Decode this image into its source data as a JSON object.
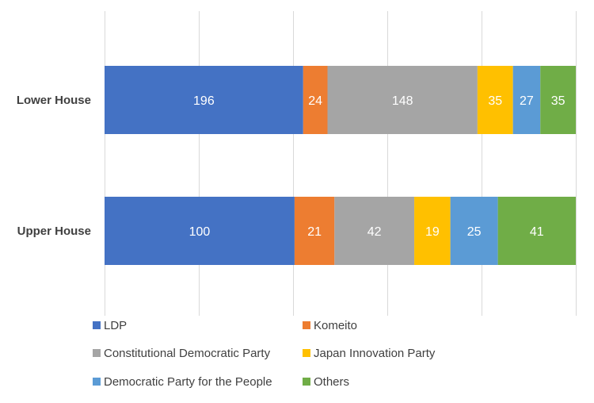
{
  "chart_data": {
    "type": "bar",
    "orientation": "horizontal",
    "stacked": "percent",
    "categories": [
      "Upper House",
      "Lower House"
    ],
    "series": [
      {
        "name": "LDP",
        "values": [
          100,
          196
        ],
        "color": "#4472c4"
      },
      {
        "name": "Komeito",
        "values": [
          21,
          24
        ],
        "color": "#ed7d31"
      },
      {
        "name": "Constitutional Democratic Party",
        "values": [
          42,
          148
        ],
        "color": "#a5a5a5"
      },
      {
        "name": "Japan Innovation Party",
        "values": [
          19,
          35
        ],
        "color": "#ffc000"
      },
      {
        "name": "Democratic Party for the People",
        "values": [
          25,
          27
        ],
        "color": "#5b9bd5"
      },
      {
        "name": "Others",
        "values": [
          41,
          35
        ],
        "color": "#70ad47"
      }
    ],
    "grid": true,
    "legend_position": "bottom"
  }
}
